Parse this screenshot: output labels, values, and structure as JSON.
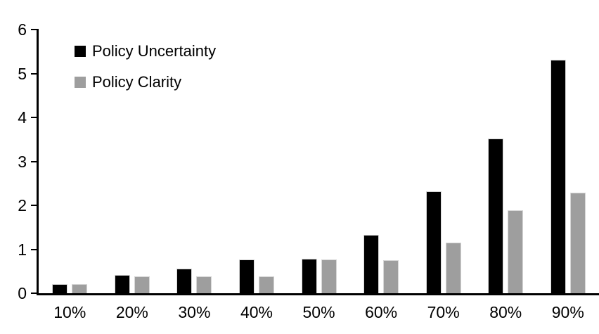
{
  "chart_data": {
    "type": "bar",
    "title": "",
    "xlabel": "",
    "ylabel": "",
    "categories": [
      "10%",
      "20%",
      "30%",
      "40%",
      "50%",
      "60%",
      "70%",
      "80%",
      "90%"
    ],
    "series": [
      {
        "name": "Policy Uncertainty",
        "color": "#000000",
        "values": [
          0.2,
          0.4,
          0.55,
          0.75,
          0.77,
          1.32,
          2.3,
          3.5,
          5.3
        ]
      },
      {
        "name": "Policy Clarity",
        "color": "#9e9e9e",
        "values": [
          0.19,
          0.37,
          0.37,
          0.37,
          0.75,
          0.74,
          1.13,
          1.88,
          2.28
        ]
      }
    ],
    "ylim": [
      0,
      6
    ],
    "y_ticks": [
      "0",
      "1",
      "2",
      "3",
      "4",
      "5",
      "6"
    ],
    "grid": false,
    "legend_position": "top-left",
    "axis_color": "#000000",
    "background_color": "#ffffff"
  }
}
